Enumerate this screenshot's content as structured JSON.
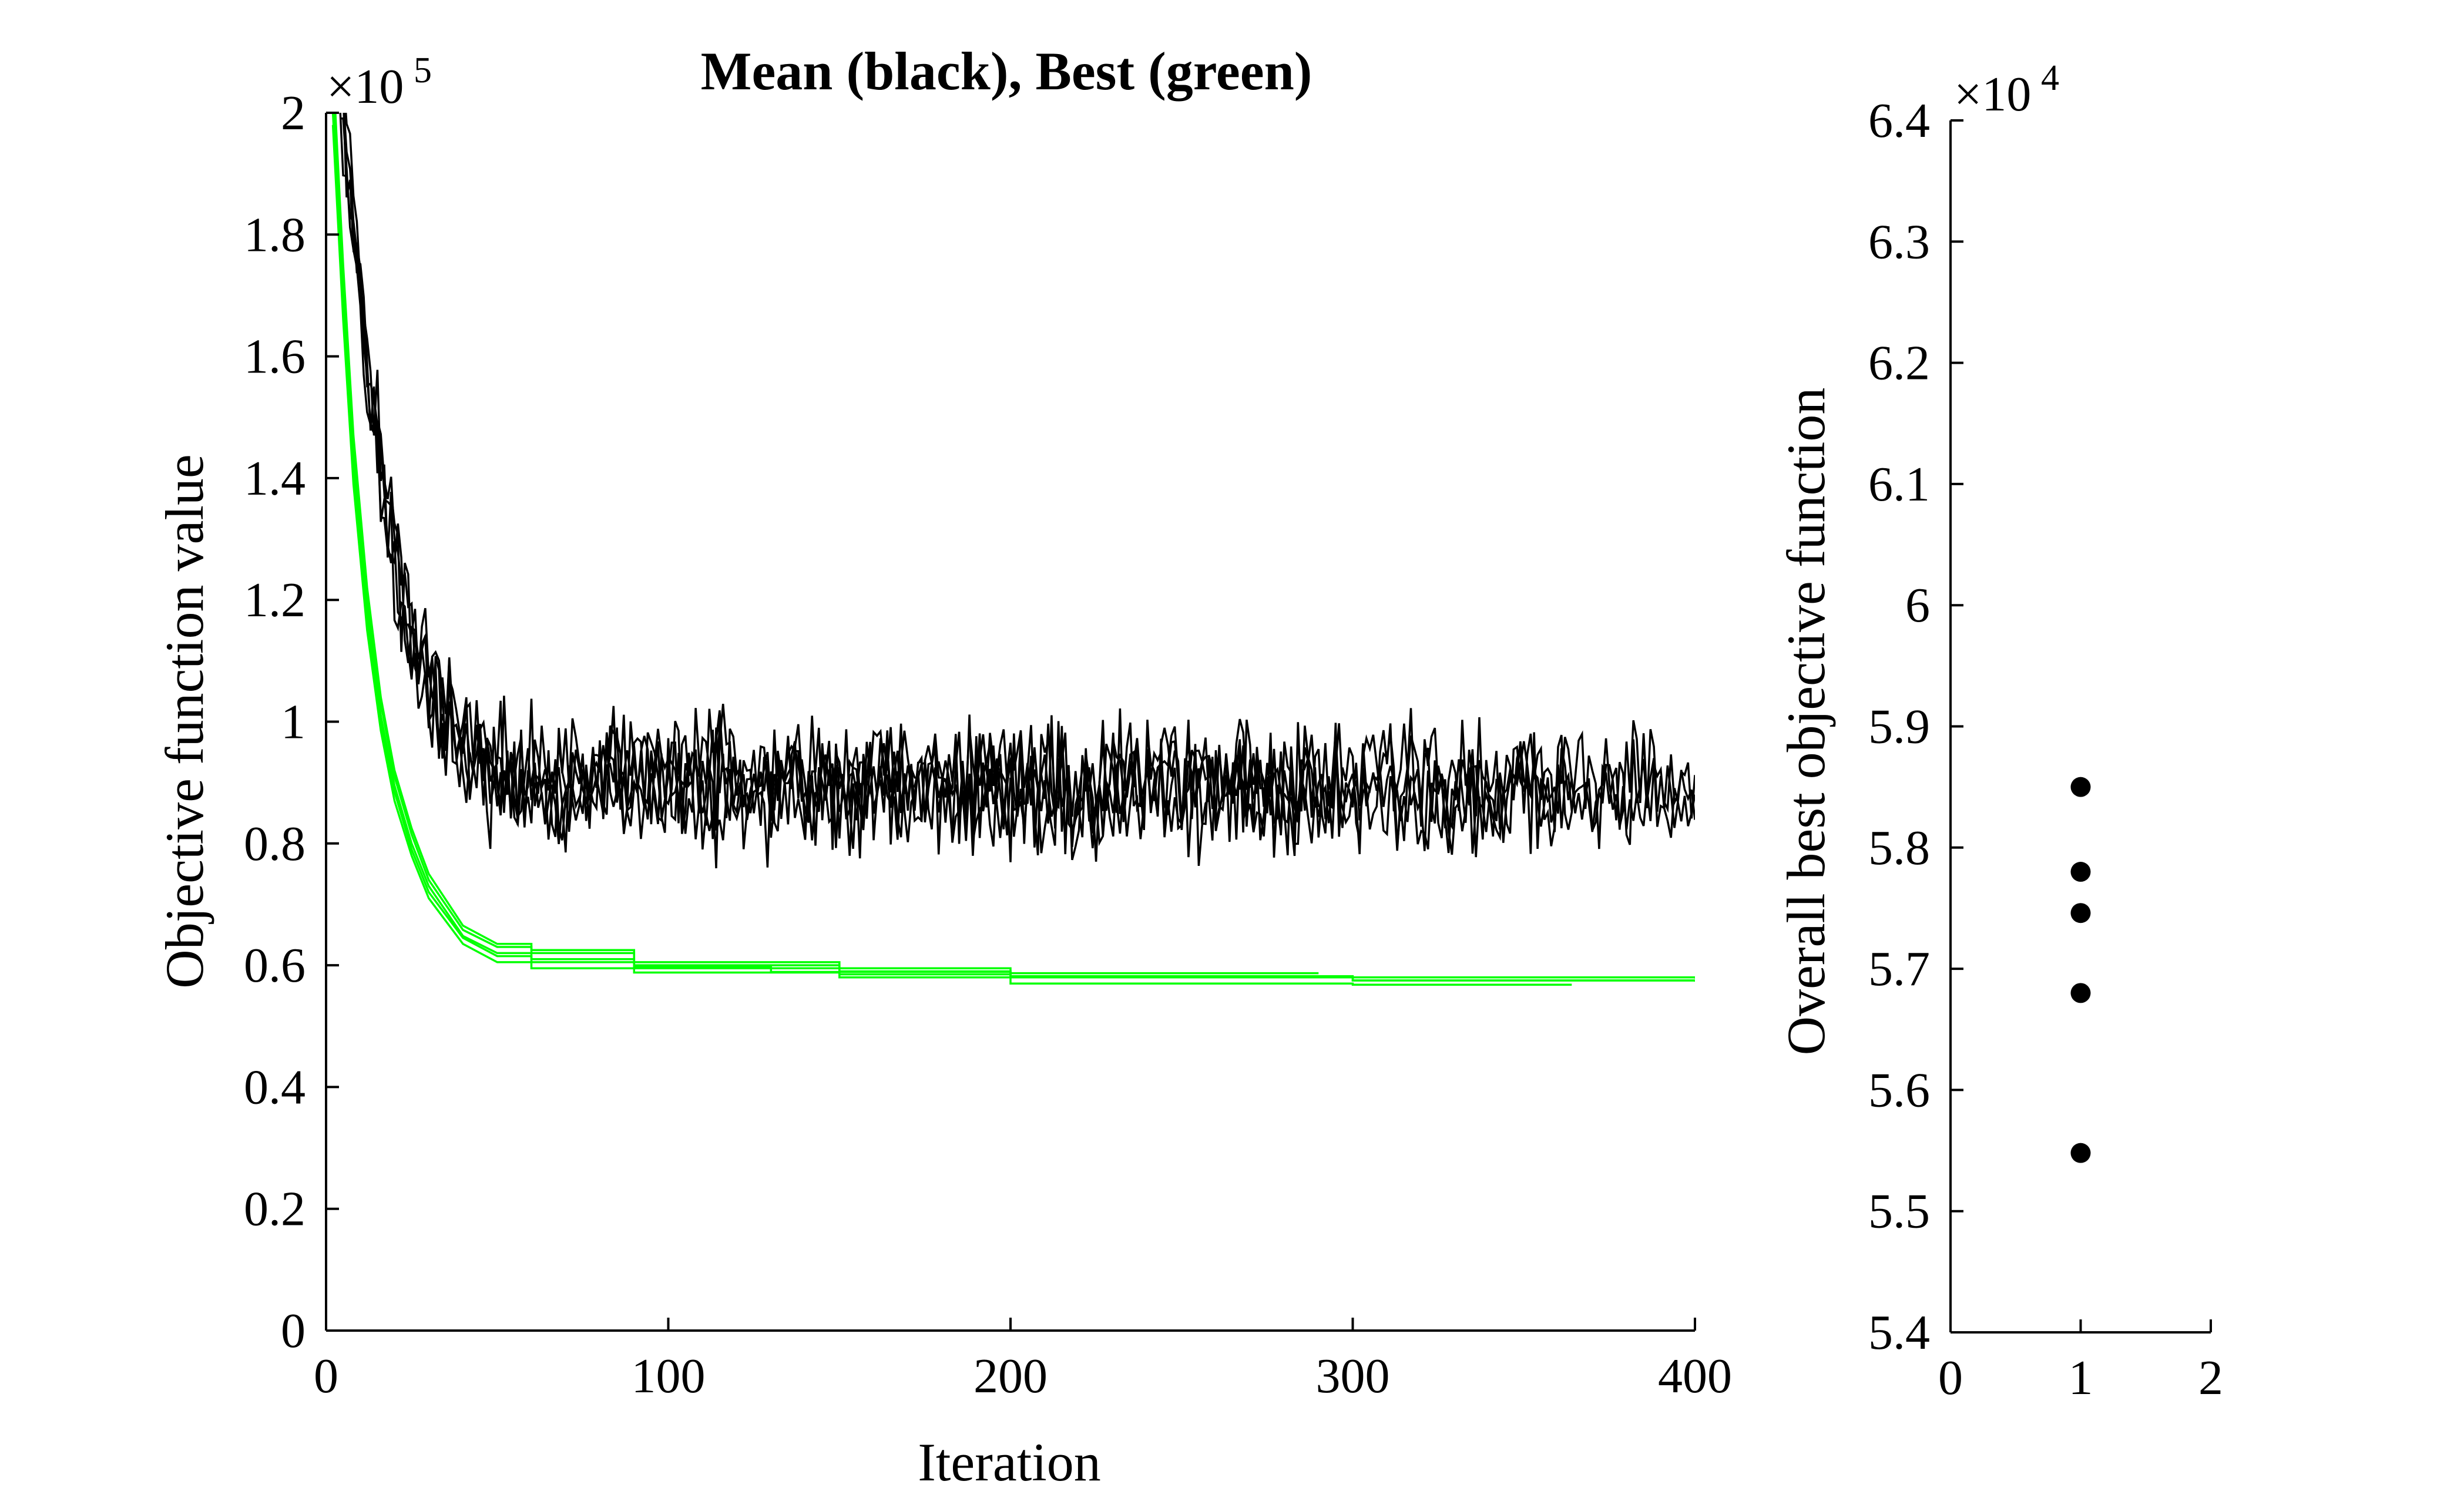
{
  "chart_data": [
    {
      "type": "line",
      "title": "Mean (black), Best (green)",
      "xlabel": "Iteration",
      "ylabel": "Objective function value",
      "y_exponent_label": "×10",
      "y_exponent_power": "5",
      "xlim": [
        0,
        400
      ],
      "ylim": [
        0,
        200000
      ],
      "x_ticks": [
        0,
        100,
        200,
        300,
        400
      ],
      "x_tick_labels": [
        "0",
        "100",
        "200",
        "300",
        "400"
      ],
      "y_ticks": [
        0,
        20000,
        40000,
        60000,
        80000,
        100000,
        120000,
        140000,
        160000,
        180000,
        200000
      ],
      "y_tick_labels": [
        "0",
        "0.2",
        "0.4",
        "0.6",
        "0.8",
        "1",
        "1.2",
        "1.4",
        "1.6",
        "1.8",
        "2"
      ],
      "grid": false,
      "colors": {
        "mean": "#000000",
        "best": "#00ff00"
      },
      "series": [
        {
          "group": "mean",
          "run": 1,
          "color": "#000000",
          "x": [
            4,
            8,
            12,
            16,
            20,
            25,
            30,
            40,
            50,
            60,
            80,
            120,
            160,
            200,
            240,
            280,
            320,
            360,
            400
          ],
          "values": [
            210000,
            185000,
            160000,
            142000,
            128000,
            115000,
            105000,
            96000,
            92000,
            90500,
            90000,
            90000,
            90000,
            89500,
            89500,
            89000,
            88500,
            88500,
            89000
          ]
        },
        {
          "group": "mean",
          "run": 2,
          "color": "#000000",
          "x": [
            4,
            8,
            12,
            16,
            20,
            25,
            30,
            40,
            50,
            60,
            80,
            120,
            160,
            200,
            240,
            280,
            320,
            360,
            400
          ],
          "values": [
            205000,
            180000,
            157000,
            140000,
            126000,
            113000,
            104000,
            95500,
            91500,
            90500,
            90000,
            89500,
            89500,
            89500,
            89000,
            89000,
            88500,
            89000,
            88500
          ]
        },
        {
          "group": "mean",
          "run": 3,
          "color": "#000000",
          "x": [
            4,
            8,
            12,
            16,
            20,
            25,
            30,
            40,
            50,
            60,
            80,
            120,
            160,
            200,
            240,
            280,
            320,
            360,
            400
          ],
          "values": [
            212000,
            188000,
            163000,
            145000,
            130000,
            117000,
            107000,
            97500,
            93000,
            91000,
            90500,
            90000,
            90000,
            90000,
            89500,
            89000,
            89000,
            88500,
            89500
          ]
        },
        {
          "group": "mean",
          "run": 4,
          "color": "#000000",
          "x": [
            4,
            8,
            12,
            16,
            20,
            25,
            30,
            40,
            50,
            60,
            80,
            120,
            160,
            200,
            240,
            280,
            320,
            360,
            364
          ],
          "values": [
            208000,
            183000,
            159000,
            141000,
            127000,
            114000,
            105000,
            96500,
            92500,
            91000,
            90000,
            90000,
            89500,
            89500,
            89500,
            89000,
            89000,
            88500,
            88500
          ]
        },
        {
          "group": "mean",
          "run": 5,
          "color": "#000000",
          "x": [
            4,
            8,
            12,
            16,
            20,
            25,
            30,
            40,
            50,
            60,
            80,
            120,
            160,
            200,
            240,
            280,
            290
          ],
          "values": [
            203000,
            178000,
            155000,
            138000,
            124000,
            112000,
            103000,
            95000,
            91500,
            90000,
            89500,
            89500,
            89000,
            89000,
            89000,
            88500,
            88500
          ]
        },
        {
          "group": "best",
          "run": 1,
          "color": "#00ff00",
          "x": [
            2,
            5,
            8,
            12,
            16,
            20,
            25,
            30,
            40,
            50,
            60,
            90,
            150,
            200,
            300,
            400
          ],
          "values": [
            205000,
            172000,
            145000,
            120000,
            103000,
            91000,
            81500,
            74000,
            65800,
            63000,
            62000,
            60000,
            59500,
            58000,
            57500,
            57500
          ]
        },
        {
          "group": "best",
          "run": 2,
          "color": "#00ff00",
          "x": [
            2,
            5,
            8,
            12,
            16,
            20,
            25,
            30,
            40,
            50,
            60,
            90,
            150,
            200,
            300,
            400
          ],
          "values": [
            200000,
            168000,
            141000,
            117000,
            100000,
            88500,
            79000,
            72000,
            64500,
            61500,
            60500,
            59500,
            58500,
            58000,
            57500,
            57300
          ]
        },
        {
          "group": "best",
          "run": 3,
          "color": "#00ff00",
          "x": [
            2,
            5,
            8,
            12,
            16,
            20,
            25,
            30,
            40,
            50,
            60,
            90,
            150,
            200,
            300,
            400
          ],
          "values": [
            208000,
            175000,
            147000,
            122000,
            104000,
            92000,
            82500,
            75000,
            66500,
            63500,
            62500,
            60500,
            59000,
            58200,
            58000,
            57800
          ]
        },
        {
          "group": "best",
          "run": 4,
          "color": "#00ff00",
          "x": [
            2,
            5,
            8,
            12,
            16,
            20,
            25,
            30,
            40,
            50,
            60,
            90,
            150,
            200,
            300,
            364
          ],
          "values": [
            198000,
            166000,
            139000,
            115000,
            98500,
            87000,
            78000,
            71000,
            63500,
            60500,
            59500,
            58800,
            58000,
            57000,
            56800,
            56800
          ]
        },
        {
          "group": "best",
          "run": 5,
          "color": "#00ff00",
          "x": [
            2,
            5,
            8,
            12,
            16,
            20,
            25,
            30,
            40,
            50,
            60,
            90,
            130,
            200,
            290
          ],
          "values": [
            202000,
            170000,
            143000,
            118000,
            101000,
            89500,
            80000,
            73000,
            64800,
            62000,
            61000,
            59800,
            58900,
            58700,
            58700
          ]
        }
      ]
    },
    {
      "type": "scatter",
      "xlabel": "",
      "ylabel": "Overall best objective function",
      "y_exponent_label": "×10",
      "y_exponent_power": "4",
      "xlim": [
        0,
        2
      ],
      "ylim": [
        54000,
        64000
      ],
      "x_ticks": [
        0,
        1,
        2
      ],
      "x_tick_labels": [
        "0",
        "1",
        "2"
      ],
      "y_ticks": [
        54000,
        55000,
        56000,
        57000,
        58000,
        59000,
        60000,
        61000,
        62000,
        63000,
        64000
      ],
      "y_tick_labels": [
        "5.4",
        "5.5",
        "5.6",
        "5.7",
        "5.8",
        "5.9",
        "6",
        "6.1",
        "6.2",
        "6.3",
        "6.4"
      ],
      "grid": false,
      "x": [
        1,
        1,
        1,
        1,
        1
      ],
      "values": [
        58500,
        57800,
        57460,
        56800,
        55480
      ]
    }
  ]
}
